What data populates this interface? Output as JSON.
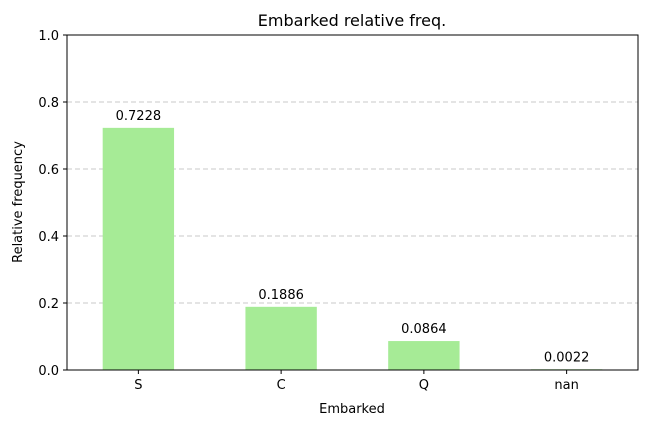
{
  "chart_data": {
    "type": "bar",
    "title": "Embarked relative freq.",
    "xlabel": "Embarked",
    "ylabel": "Relative frequency",
    "categories": [
      "S",
      "C",
      "Q",
      "nan"
    ],
    "values": [
      0.7228,
      0.1886,
      0.0864,
      0.0022
    ],
    "data_labels": [
      "0.7228",
      "0.1886",
      "0.0864",
      "0.0022"
    ],
    "ylim": [
      0,
      1.0
    ],
    "yticks": [
      0.0,
      0.2,
      0.4,
      0.6,
      0.8,
      1.0
    ],
    "ytick_labels": [
      "0.0",
      "0.2",
      "0.4",
      "0.6",
      "0.8",
      "1.0"
    ],
    "grid": "y-dashed",
    "bar_color": "#a6eb96"
  }
}
